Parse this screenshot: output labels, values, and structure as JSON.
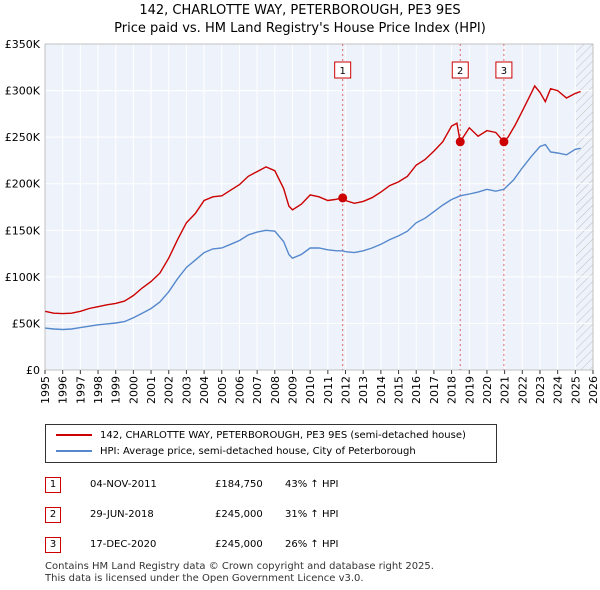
{
  "chart_data": {
    "type": "line",
    "title": "142, CHARLOTTE WAY, PETERBOROUGH, PE3 9ES",
    "subtitle": "Price paid vs. HM Land Registry's House Price Index (HPI)",
    "xlim": [
      1995,
      2026
    ],
    "ylim": [
      0,
      350000
    ],
    "x_ticks": [
      "1995",
      "1996",
      "1997",
      "1998",
      "1999",
      "2000",
      "2001",
      "2002",
      "2003",
      "2004",
      "2005",
      "2006",
      "2007",
      "2008",
      "2009",
      "2010",
      "2011",
      "2012",
      "2013",
      "2014",
      "2015",
      "2016",
      "2017",
      "2018",
      "2019",
      "2020",
      "2021",
      "2022",
      "2023",
      "2024",
      "2025",
      "2026"
    ],
    "y_ticks": [
      {
        "value": 0,
        "label": "£0"
      },
      {
        "value": 50000,
        "label": "£50K"
      },
      {
        "value": 100000,
        "label": "£100K"
      },
      {
        "value": 150000,
        "label": "£150K"
      },
      {
        "value": 200000,
        "label": "£200K"
      },
      {
        "value": 250000,
        "label": "£250K"
      },
      {
        "value": 300000,
        "label": "£300K"
      },
      {
        "value": 350000,
        "label": "£350K"
      }
    ],
    "hatch_after": 2025.0,
    "series": [
      {
        "name": "142, CHARLOTTE WAY, PETERBOROUGH, PE3 9ES (semi-detached house)",
        "color": "#cc0000",
        "points": [
          [
            1995.0,
            63000
          ],
          [
            1995.5,
            61000
          ],
          [
            1996.0,
            60500
          ],
          [
            1996.5,
            61000
          ],
          [
            1997.0,
            63000
          ],
          [
            1997.5,
            66000
          ],
          [
            1998.0,
            68000
          ],
          [
            1998.5,
            70000
          ],
          [
            1999.0,
            71500
          ],
          [
            1999.5,
            74000
          ],
          [
            2000.0,
            80000
          ],
          [
            2000.5,
            88000
          ],
          [
            2001.0,
            95000
          ],
          [
            2001.5,
            104000
          ],
          [
            2002.0,
            120000
          ],
          [
            2002.5,
            140000
          ],
          [
            2003.0,
            158000
          ],
          [
            2003.5,
            168000
          ],
          [
            2004.0,
            182000
          ],
          [
            2004.5,
            186000
          ],
          [
            2005.0,
            187000
          ],
          [
            2005.5,
            193000
          ],
          [
            2006.0,
            199000
          ],
          [
            2006.5,
            208000
          ],
          [
            2007.0,
            213000
          ],
          [
            2007.5,
            218000
          ],
          [
            2008.0,
            214000
          ],
          [
            2008.5,
            195000
          ],
          [
            2008.8,
            176000
          ],
          [
            2009.0,
            172000
          ],
          [
            2009.5,
            178000
          ],
          [
            2010.0,
            188000
          ],
          [
            2010.5,
            186000
          ],
          [
            2011.0,
            182000
          ],
          [
            2011.4,
            183000
          ],
          [
            2011.84,
            184750
          ],
          [
            2012.0,
            182000
          ],
          [
            2012.5,
            179000
          ],
          [
            2013.0,
            181000
          ],
          [
            2013.5,
            185000
          ],
          [
            2014.0,
            191000
          ],
          [
            2014.5,
            198000
          ],
          [
            2015.0,
            202000
          ],
          [
            2015.5,
            208000
          ],
          [
            2016.0,
            220000
          ],
          [
            2016.5,
            226000
          ],
          [
            2017.0,
            235000
          ],
          [
            2017.5,
            245000
          ],
          [
            2018.0,
            262000
          ],
          [
            2018.3,
            265000
          ],
          [
            2018.49,
            245000
          ],
          [
            2018.8,
            254000
          ],
          [
            2019.0,
            260000
          ],
          [
            2019.5,
            251000
          ],
          [
            2020.0,
            257000
          ],
          [
            2020.5,
            255000
          ],
          [
            2020.96,
            245000
          ],
          [
            2021.2,
            250000
          ],
          [
            2021.6,
            263000
          ],
          [
            2022.0,
            278000
          ],
          [
            2022.5,
            297000
          ],
          [
            2022.7,
            305000
          ],
          [
            2023.0,
            298000
          ],
          [
            2023.3,
            288000
          ],
          [
            2023.6,
            302000
          ],
          [
            2024.0,
            300000
          ],
          [
            2024.5,
            292000
          ],
          [
            2025.0,
            297000
          ],
          [
            2025.3,
            299000
          ]
        ]
      },
      {
        "name": "HPI: Average price, semi-detached house, City of Peterborough",
        "color": "#5588cc",
        "points": [
          [
            1995.0,
            45000
          ],
          [
            1995.5,
            44000
          ],
          [
            1996.0,
            43500
          ],
          [
            1996.5,
            44000
          ],
          [
            1997.0,
            45500
          ],
          [
            1997.5,
            47000
          ],
          [
            1998.0,
            48500
          ],
          [
            1998.5,
            49500
          ],
          [
            1999.0,
            50500
          ],
          [
            1999.5,
            52000
          ],
          [
            2000.0,
            56000
          ],
          [
            2000.5,
            61000
          ],
          [
            2001.0,
            66000
          ],
          [
            2001.5,
            73000
          ],
          [
            2002.0,
            84000
          ],
          [
            2002.5,
            98000
          ],
          [
            2003.0,
            110000
          ],
          [
            2003.5,
            118000
          ],
          [
            2004.0,
            126000
          ],
          [
            2004.5,
            130000
          ],
          [
            2005.0,
            131000
          ],
          [
            2005.5,
            135000
          ],
          [
            2006.0,
            139000
          ],
          [
            2006.5,
            145000
          ],
          [
            2007.0,
            148000
          ],
          [
            2007.5,
            150000
          ],
          [
            2008.0,
            149000
          ],
          [
            2008.5,
            138000
          ],
          [
            2008.8,
            124000
          ],
          [
            2009.0,
            120000
          ],
          [
            2009.5,
            124000
          ],
          [
            2010.0,
            131000
          ],
          [
            2010.5,
            131000
          ],
          [
            2011.0,
            129000
          ],
          [
            2011.5,
            128000
          ],
          [
            2011.84,
            128000
          ],
          [
            2012.0,
            127000
          ],
          [
            2012.5,
            126000
          ],
          [
            2013.0,
            128000
          ],
          [
            2013.5,
            131000
          ],
          [
            2014.0,
            135000
          ],
          [
            2014.5,
            140000
          ],
          [
            2015.0,
            144000
          ],
          [
            2015.5,
            149000
          ],
          [
            2016.0,
            158000
          ],
          [
            2016.5,
            163000
          ],
          [
            2017.0,
            170000
          ],
          [
            2017.5,
            177000
          ],
          [
            2018.0,
            183000
          ],
          [
            2018.49,
            187000
          ],
          [
            2019.0,
            189000
          ],
          [
            2019.5,
            191000
          ],
          [
            2020.0,
            194000
          ],
          [
            2020.5,
            192000
          ],
          [
            2020.96,
            194000
          ],
          [
            2021.5,
            204000
          ],
          [
            2022.0,
            217000
          ],
          [
            2022.5,
            229000
          ],
          [
            2023.0,
            240000
          ],
          [
            2023.3,
            242000
          ],
          [
            2023.6,
            234000
          ],
          [
            2024.0,
            233000
          ],
          [
            2024.5,
            231000
          ],
          [
            2025.0,
            237000
          ],
          [
            2025.3,
            238000
          ]
        ]
      }
    ],
    "sales": [
      {
        "num": "1",
        "x": 2011.84,
        "price": 184750
      },
      {
        "num": "2",
        "x": 2018.49,
        "price": 245000
      },
      {
        "num": "3",
        "x": 2020.96,
        "price": 245000
      }
    ]
  },
  "legend": {
    "line1": "142, CHARLOTTE WAY, PETERBOROUGH, PE3 9ES (semi-detached house)",
    "line2": "HPI: Average price, semi-detached house, City of Peterborough",
    "color1": "#cc0000",
    "color2": "#5588cc"
  },
  "sales_table": [
    {
      "num": "1",
      "date": "04-NOV-2011",
      "price": "£184,750",
      "hpi": "43% ↑ HPI"
    },
    {
      "num": "2",
      "date": "29-JUN-2018",
      "price": "£245,000",
      "hpi": "31% ↑ HPI"
    },
    {
      "num": "3",
      "date": "17-DEC-2020",
      "price": "£245,000",
      "hpi": "26% ↑ HPI"
    }
  ],
  "footer": {
    "line1": "Contains HM Land Registry data © Crown copyright and database right 2025.",
    "line2": "This data is licensed under the Open Government Licence v3.0."
  }
}
